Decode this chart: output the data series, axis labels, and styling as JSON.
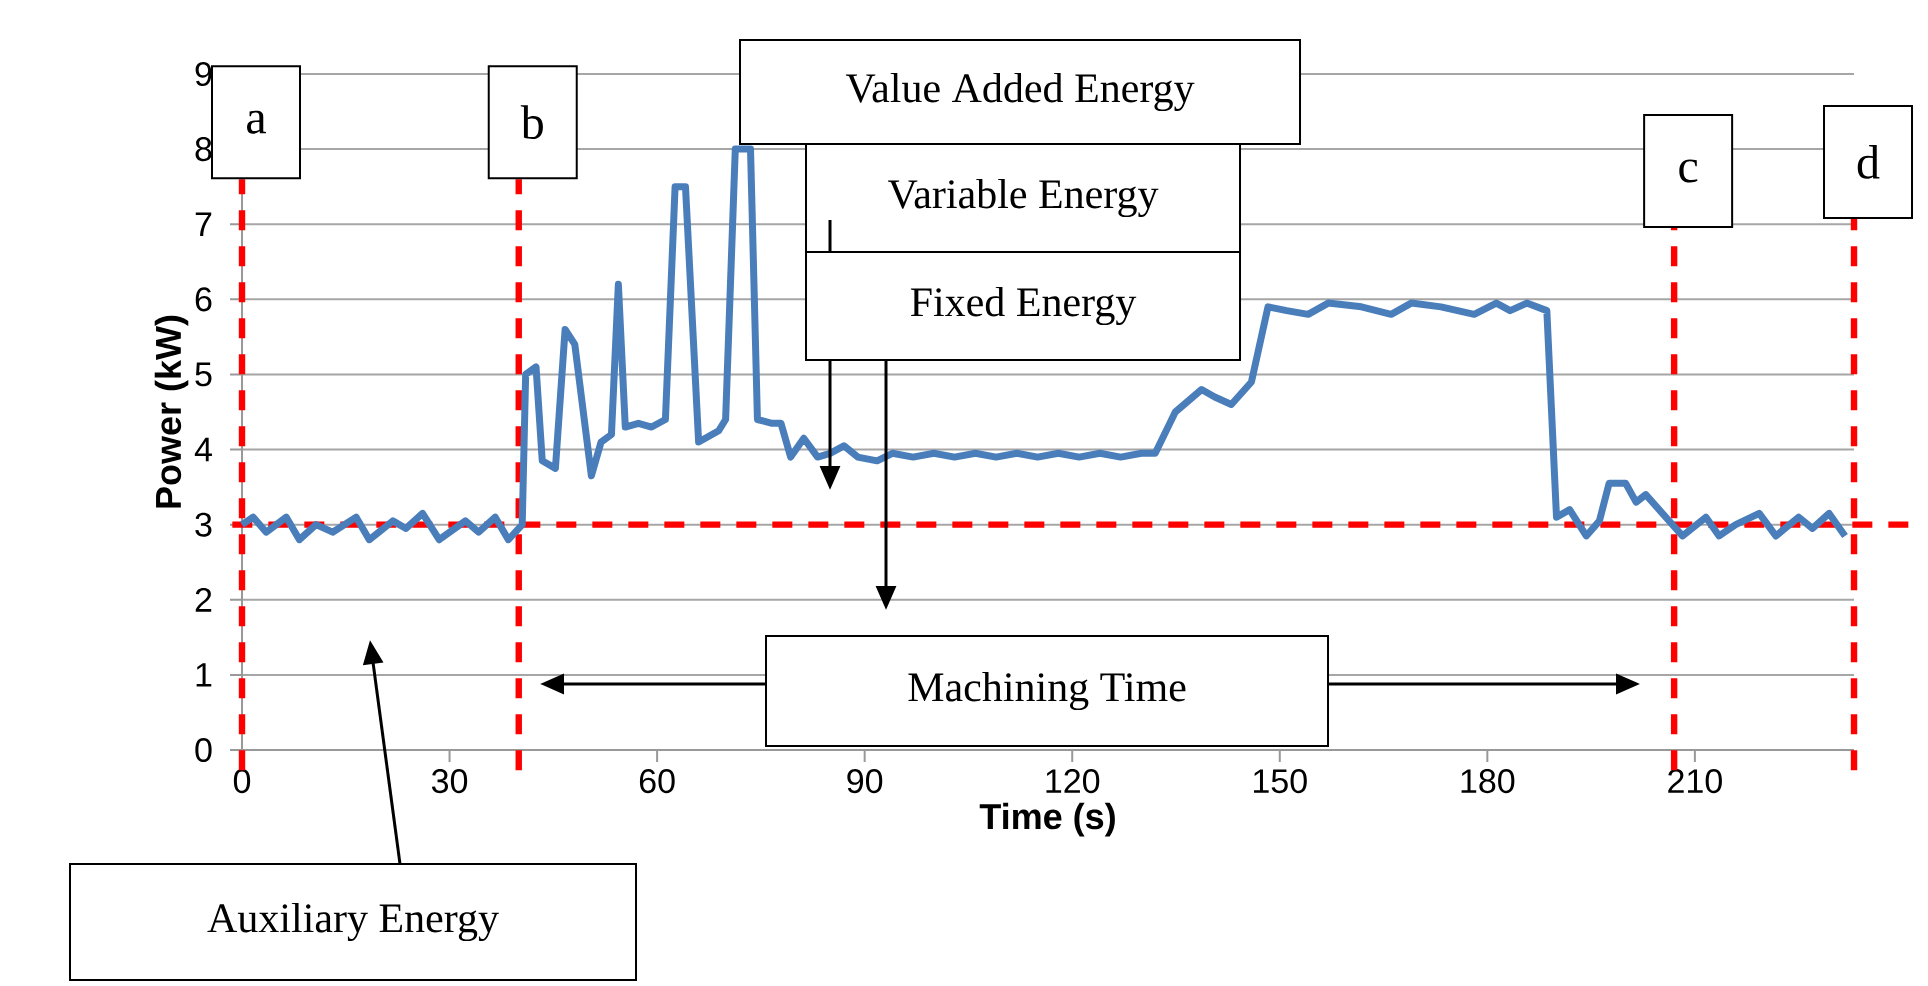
{
  "chart_data": {
    "type": "line",
    "xlabel": "Time (s)",
    "ylabel": "Power (kW)",
    "color": "#4a7ebb",
    "grid": "y",
    "xlim": [
      0,
      233
    ],
    "ylim": [
      0,
      9
    ],
    "xticks": [
      0,
      30,
      60,
      90,
      120,
      150,
      180,
      210
    ],
    "yticks": [
      0,
      1,
      2,
      3,
      4,
      5,
      6,
      7,
      8,
      9
    ],
    "x": [
      0,
      1.6,
      3.5,
      6.4,
      8.3,
      10.7,
      13.1,
      16.5,
      18.4,
      21.8,
      23.7,
      26.1,
      28.5,
      32.3,
      34.2,
      36.6,
      38.5,
      40.5,
      41,
      42.5,
      43.4,
      45.3,
      46.7,
      48.1,
      50.5,
      51.9,
      53.4,
      54.4,
      55.4,
      57.3,
      59.2,
      61.2,
      62.6,
      64.1,
      66,
      68.9,
      69.9,
      71.3,
      72.3,
      73.5,
      74.5,
      76.6,
      77.9,
      79.3,
      81.2,
      83.2,
      85,
      87,
      89,
      91.8,
      94,
      97,
      100,
      103,
      106,
      109,
      112,
      115,
      118,
      121,
      124,
      127,
      130,
      132,
      134.9,
      138.7,
      140.6,
      143,
      145.9,
      148.3,
      151,
      154.1,
      157,
      161.8,
      166.1,
      169,
      173.3,
      178.1,
      181.3,
      183.3,
      185.7,
      188.6,
      190,
      191.9,
      194.3,
      196.2,
      197.6,
      200,
      201.5,
      202.9,
      208.2,
      211.6,
      213.5,
      215.9,
      219.3,
      221.7,
      225,
      227,
      229.4,
      231.7
    ],
    "values": [
      3.0,
      3.1,
      2.9,
      3.1,
      2.8,
      3.0,
      2.9,
      3.1,
      2.8,
      3.05,
      2.95,
      3.15,
      2.8,
      3.05,
      2.9,
      3.1,
      2.8,
      3.0,
      5.0,
      5.1,
      3.85,
      3.75,
      5.6,
      5.4,
      3.65,
      4.1,
      4.2,
      6.2,
      4.3,
      4.35,
      4.3,
      4.4,
      7.5,
      7.5,
      4.1,
      4.25,
      4.4,
      8.0,
      8.0,
      8.0,
      4.4,
      4.35,
      4.35,
      3.9,
      4.15,
      3.9,
      3.95,
      4.05,
      3.9,
      3.85,
      3.95,
      3.9,
      3.95,
      3.9,
      3.95,
      3.9,
      3.95,
      3.9,
      3.95,
      3.9,
      3.95,
      3.9,
      3.95,
      3.95,
      4.5,
      4.8,
      4.7,
      4.6,
      4.9,
      5.9,
      5.85,
      5.8,
      5.95,
      5.9,
      5.8,
      5.95,
      5.9,
      5.8,
      5.95,
      5.85,
      5.95,
      5.85,
      3.1,
      3.2,
      2.85,
      3.05,
      3.55,
      3.55,
      3.3,
      3.4,
      2.85,
      3.1,
      2.85,
      3.0,
      3.15,
      2.85,
      3.1,
      2.95,
      3.15,
      2.85
    ],
    "ref_lines": [
      {
        "axis": "y",
        "value": 3,
        "color": "#ff0000",
        "line_style": "dashed"
      },
      {
        "axis": "x",
        "value": 0,
        "label": "a",
        "color": "#ff0000",
        "line_style": "dashed"
      },
      {
        "axis": "x",
        "value": 40,
        "label": "b",
        "color": "#ff0000",
        "line_style": "dashed"
      },
      {
        "axis": "x",
        "value": 207,
        "label": "c",
        "color": "#ff0000",
        "line_style": "dashed"
      },
      {
        "axis": "x",
        "value": 233,
        "label": "d",
        "color": "#ff0000",
        "line_style": "dashed"
      }
    ],
    "annotations": [
      "Value Added Energy",
      "Variable Energy",
      "Fixed Energy",
      "Machining Time",
      "Auxiliary Energy"
    ]
  }
}
